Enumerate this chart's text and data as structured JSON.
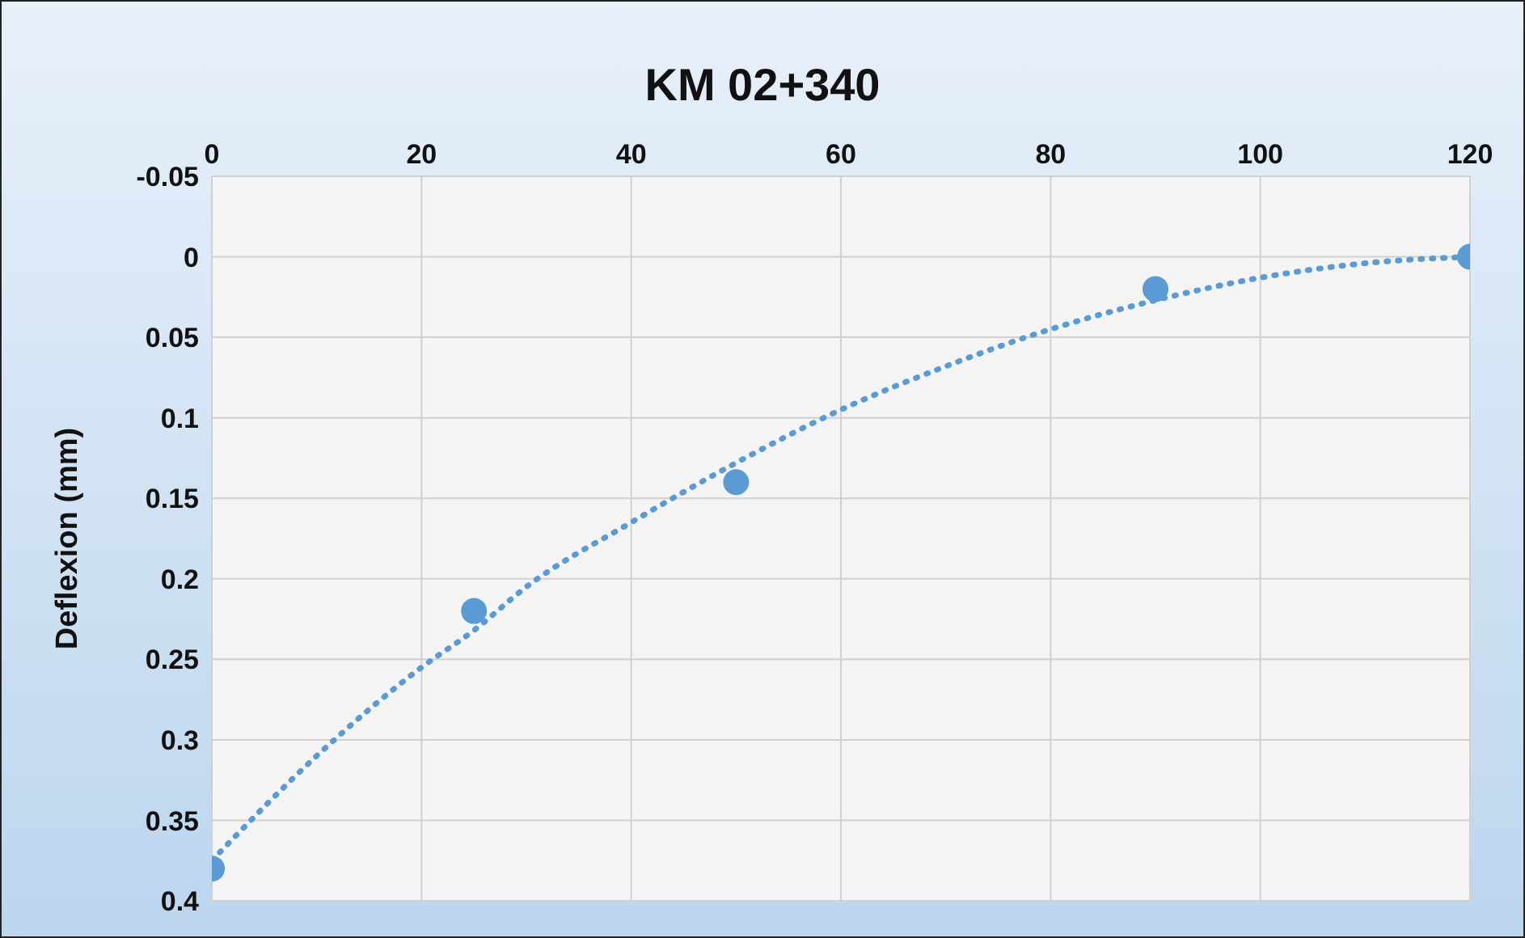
{
  "chart_data": {
    "type": "scatter",
    "title": "KM 02+340",
    "ylabel": "Deflexion (mm)",
    "xlim": [
      0,
      120
    ],
    "xticks": [
      0,
      20,
      40,
      60,
      80,
      100,
      120
    ],
    "ylim": [
      0.4,
      -0.05
    ],
    "yticks": [
      -0.05,
      0,
      0.05,
      0.1,
      0.15,
      0.2,
      0.25,
      0.3,
      0.35,
      0.4
    ],
    "grid": true,
    "marker": "circle",
    "series": [
      {
        "color": "#5b9bd5",
        "x": [
          0,
          25,
          50,
          90,
          120
        ],
        "values": [
          0.38,
          0.22,
          0.14,
          0.02,
          0
        ]
      },
      {
        "type": "line",
        "color": "#5b9bd5",
        "line_style": "dotted",
        "marker": "none",
        "x": [
          0,
          10,
          20,
          25,
          30,
          40,
          50,
          60,
          70,
          80,
          90,
          100,
          110,
          120
        ],
        "values": [
          0.375,
          0.31,
          0.255,
          0.232,
          0.205,
          0.165,
          0.128,
          0.095,
          0.068,
          0.045,
          0.027,
          0.013,
          0.004,
          0
        ]
      }
    ]
  }
}
